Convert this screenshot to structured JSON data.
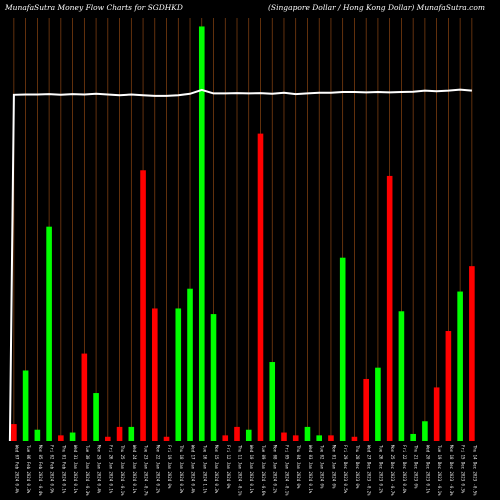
{
  "header": {
    "title_left": "MunafaSutra  Money Flow  Charts for SGDHKD",
    "title_right": "(Singapore   Dollar / Hong Kong Dollar) MunafaSutra.com"
  },
  "colors": {
    "background": "#000000",
    "grid": "#8B4513",
    "up": "#00FF00",
    "down": "#FF0000",
    "line": "#FFFFFF"
  },
  "chart_data": {
    "type": "bar",
    "title": "MunafaSutra  Money Flow  Charts for SGDHKD",
    "subtitle": "(Singapore   Dollar / Hong Kong Dollar) MunafaSutra.com",
    "categories": [
      "Wed 07 Feb 2024 0.4%",
      "Tue 06 Feb 2024 0.3%",
      "Mon 05 Feb 2024 -0.4%",
      "Fri 02 Feb 2024 0.9%",
      "Thu 01 Feb 2024 0.1%",
      "Wed 31 Jan 2024 0.1%",
      "Tue 30 Jan 2024 -0.3%",
      "Mon 29 Jan 2024 0.4%",
      "Fri 26 Jan 2024 0.1%",
      "Thu 25 Jan 2024 -0.1%",
      "Wed 24 Jan 2024 0.1%",
      "Tue 23 Jan 2024 -0.7%",
      "Mon 22 Jan 2024 0.2%",
      "Fri 19 Jan 2024 0%",
      "Thu 18 Jan 2024 0.3%",
      "Wed 17 Jan 2024 0.4%",
      "Tue 16 Jan 2024 1.1%",
      "Mon 15 Jan 2024 0.3%",
      "Fri 12 Jan 2024 0%",
      "Thu 11 Jan 2024 -0.1%",
      "Wed 10 Jan 2024 0.1%",
      "Tue 09 Jan 2024 -0.6%",
      "Mon 08 Jan 2024 0.2%",
      "Fri 05 Jan 2024 -0.1%",
      "Thu 04 Jan 2024 0%",
      "Wed 03 Jan 2024 0.1%",
      "Tue 02 Jan 2024 0%",
      "Mon 01 Jan 2024 0%",
      "Fri 29 Dec 2023 0.5%",
      "Thu 28 Dec 2023 0%",
      "Wed 27 Dec 2023 -0.2%",
      "Tue 26 Dec 2023 0.2%",
      "Mon 25 Dec 2023 -0.7%",
      "Fri 22 Dec 2023 0.4%",
      "Thu 21 Dec 2023 0%",
      "Wed 20 Dec 2023 0.1%",
      "Tue 19 Dec 2023 -0.1%",
      "Mon 18 Dec 2023 -0.3%",
      "Fri 15 Dec 2023 0.3%",
      "Thu 14 Dec 2023 -0.5%"
    ],
    "values": [
      12,
      50,
      8,
      152,
      4,
      6,
      62,
      34,
      3,
      10,
      10,
      192,
      94,
      3,
      94,
      108,
      294,
      90,
      4,
      10,
      8,
      218,
      56,
      6,
      4,
      10,
      4,
      4,
      130,
      3,
      44,
      52,
      188,
      92,
      5,
      14,
      38,
      78,
      106,
      124
    ],
    "directions": [
      "down",
      "up",
      "up",
      "up",
      "down",
      "up",
      "down",
      "up",
      "down",
      "down",
      "up",
      "down",
      "down",
      "down",
      "up",
      "up",
      "up",
      "up",
      "down",
      "down",
      "up",
      "down",
      "up",
      "down",
      "down",
      "up",
      "up",
      "down",
      "up",
      "down",
      "down",
      "up",
      "down",
      "up",
      "up",
      "up",
      "down",
      "down",
      "up",
      "down"
    ],
    "line_values": [
      98.2,
      98.3,
      98.3,
      98.4,
      98.2,
      98.4,
      98.3,
      98.5,
      98.3,
      98.1,
      98.3,
      98.1,
      97.9,
      97.9,
      98.1,
      98.5,
      99.6,
      98.6,
      98.6,
      98.7,
      98.6,
      98.7,
      98.5,
      98.8,
      98.4,
      98.6,
      98.8,
      98.8,
      99.0,
      99.0,
      98.9,
      99.0,
      98.9,
      99.0,
      99.1,
      99.4,
      99.2,
      99.4,
      99.7,
      99.4
    ],
    "line_start_value": 0,
    "ylim": [
      0,
      300
    ],
    "line_ylim": [
      0,
      120
    ],
    "grid": true,
    "xlabel": "",
    "ylabel": ""
  }
}
